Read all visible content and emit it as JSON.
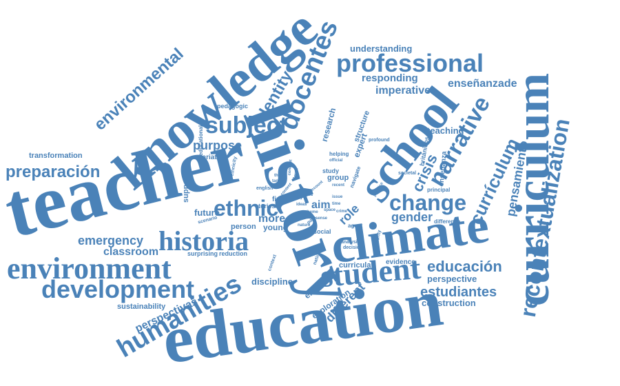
{
  "words": {
    "teacher": "teacher",
    "history": "history",
    "education": "education",
    "knowledge": "knowledge",
    "curriculum_en": "curriculum",
    "climate": "climate",
    "school": "school",
    "environment": "environment",
    "student": "student",
    "historia": "historia",
    "recontextualization": "recontextualization",
    "humanities": "humanities",
    "professional": "professional",
    "subject": "subject",
    "development": "development",
    "docentes": "docentes",
    "narrative": "narrative",
    "environmental": "environmental",
    "preparacion": "preparación",
    "change": "change",
    "ethnic": "ethnic",
    "identity": "identity",
    "curriculum_es": "currículum",
    "pensamiento": "pensamiento",
    "educacion": "educación",
    "estudiantes": "estudiantes",
    "emergency": "emergency",
    "purpose": "purpose",
    "crisis": "crisis",
    "classroom": "classroom",
    "different": "different",
    "perspectivas": "perspectivas",
    "gender": "gender",
    "ensenanzade": "enseñanzade",
    "imperative": "imperative",
    "responding": "responding",
    "understanding": "understanding",
    "construction": "construction",
    "perspective": "perspective",
    "discipline": "discipline",
    "exploration": "exploration",
    "england": "england",
    "sustainability": "sustainability",
    "transformation": "transformation",
    "teaching": "teaching",
    "role": "role",
    "research": "research",
    "aim": "aim",
    "more": "more",
    "future": "future",
    "support": "support",
    "young": "young",
    "person": "person",
    "expert": "expert",
    "structure": "structure",
    "curricula": "curricula",
    "evidence": "evidence",
    "group": "group",
    "study": "study",
    "pedagogic": "pedagogic",
    "educational": "educational",
    "variation": "variation",
    "surprising": "surprising",
    "reduction": "reduction",
    "stories": "stories",
    "fine": "fine",
    "helping": "helping",
    "navigate": "navigate",
    "profound": "profound",
    "britanicos": "británicos",
    "ensenanza": "enseñanza",
    "principal": "principal",
    "difference": "difference",
    "analysis": "analysis",
    "decision": "decision",
    "social": "social",
    "societal": "societal",
    "agent": "agent",
    "minority": "minority",
    "scenario": "scenario",
    "ethnicity": "ethnicity",
    "english": "english",
    "national": "national",
    "context": "context",
    "nature": "nature",
    "para": "para",
    "official": "official",
    "practice": "practice",
    "tanto": "tanto",
    "level": "level",
    "way": "way",
    "idea": "idea",
    "time": "time",
    "issue": "issue",
    "space": "space",
    "recent": "recent",
    "threat": "threat",
    "concept": "concept",
    "content": "content",
    "account": "account",
    "ideas": "ideas",
    "crime": "crime",
    "theme": "theme",
    "sense": "sense"
  },
  "colors": {
    "word": "#4a82b8",
    "background": "#ffffff"
  }
}
